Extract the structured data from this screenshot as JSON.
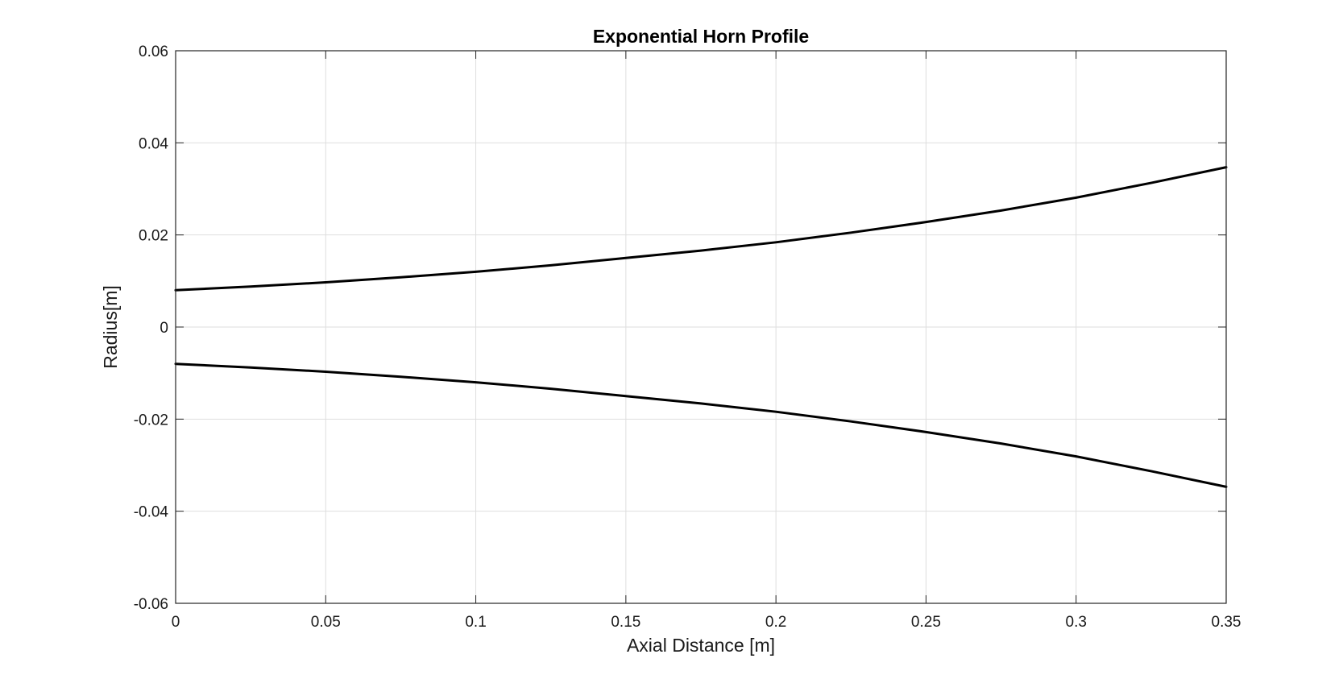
{
  "chart_data": {
    "type": "line",
    "title": "Exponential Horn Profile",
    "xlabel": "Axial Distance [m]",
    "ylabel": "Radius[m]",
    "xlim": [
      0,
      0.35
    ],
    "ylim": [
      -0.06,
      0.06
    ],
    "x_ticks": [
      0,
      0.05,
      0.1,
      0.15,
      0.2,
      0.25,
      0.3,
      0.35
    ],
    "x_tick_labels": [
      "0",
      "0.05",
      "0.1",
      "0.15",
      "0.2",
      "0.25",
      "0.3",
      "0.35"
    ],
    "y_ticks": [
      0.06,
      0.04,
      0.02,
      0,
      -0.02,
      -0.04,
      -0.06
    ],
    "y_tick_labels": [
      "0.06",
      "0.04",
      "0.02",
      "0",
      "-0.02",
      "-0.04",
      "-0.06"
    ],
    "grid": true,
    "legend": "none",
    "series_color": "#000000",
    "series": [
      {
        "x": [
          0,
          0.025,
          0.05,
          0.075,
          0.1,
          0.125,
          0.15,
          0.175,
          0.2,
          0.225,
          0.25,
          0.275,
          0.3,
          0.325,
          0.35
        ],
        "y": [
          0.008,
          0.0088,
          0.0097,
          0.0108,
          0.012,
          0.0134,
          0.015,
          0.0166,
          0.0184,
          0.0205,
          0.0228,
          0.0253,
          0.0281,
          0.0313,
          0.0347
        ]
      },
      {
        "x": [
          0,
          0.025,
          0.05,
          0.075,
          0.1,
          0.125,
          0.15,
          0.175,
          0.2,
          0.225,
          0.25,
          0.275,
          0.3,
          0.325,
          0.35
        ],
        "y": [
          -0.008,
          -0.0088,
          -0.0097,
          -0.0108,
          -0.012,
          -0.0134,
          -0.015,
          -0.0166,
          -0.0184,
          -0.0205,
          -0.0228,
          -0.0253,
          -0.0281,
          -0.0313,
          -0.0347
        ]
      }
    ]
  }
}
